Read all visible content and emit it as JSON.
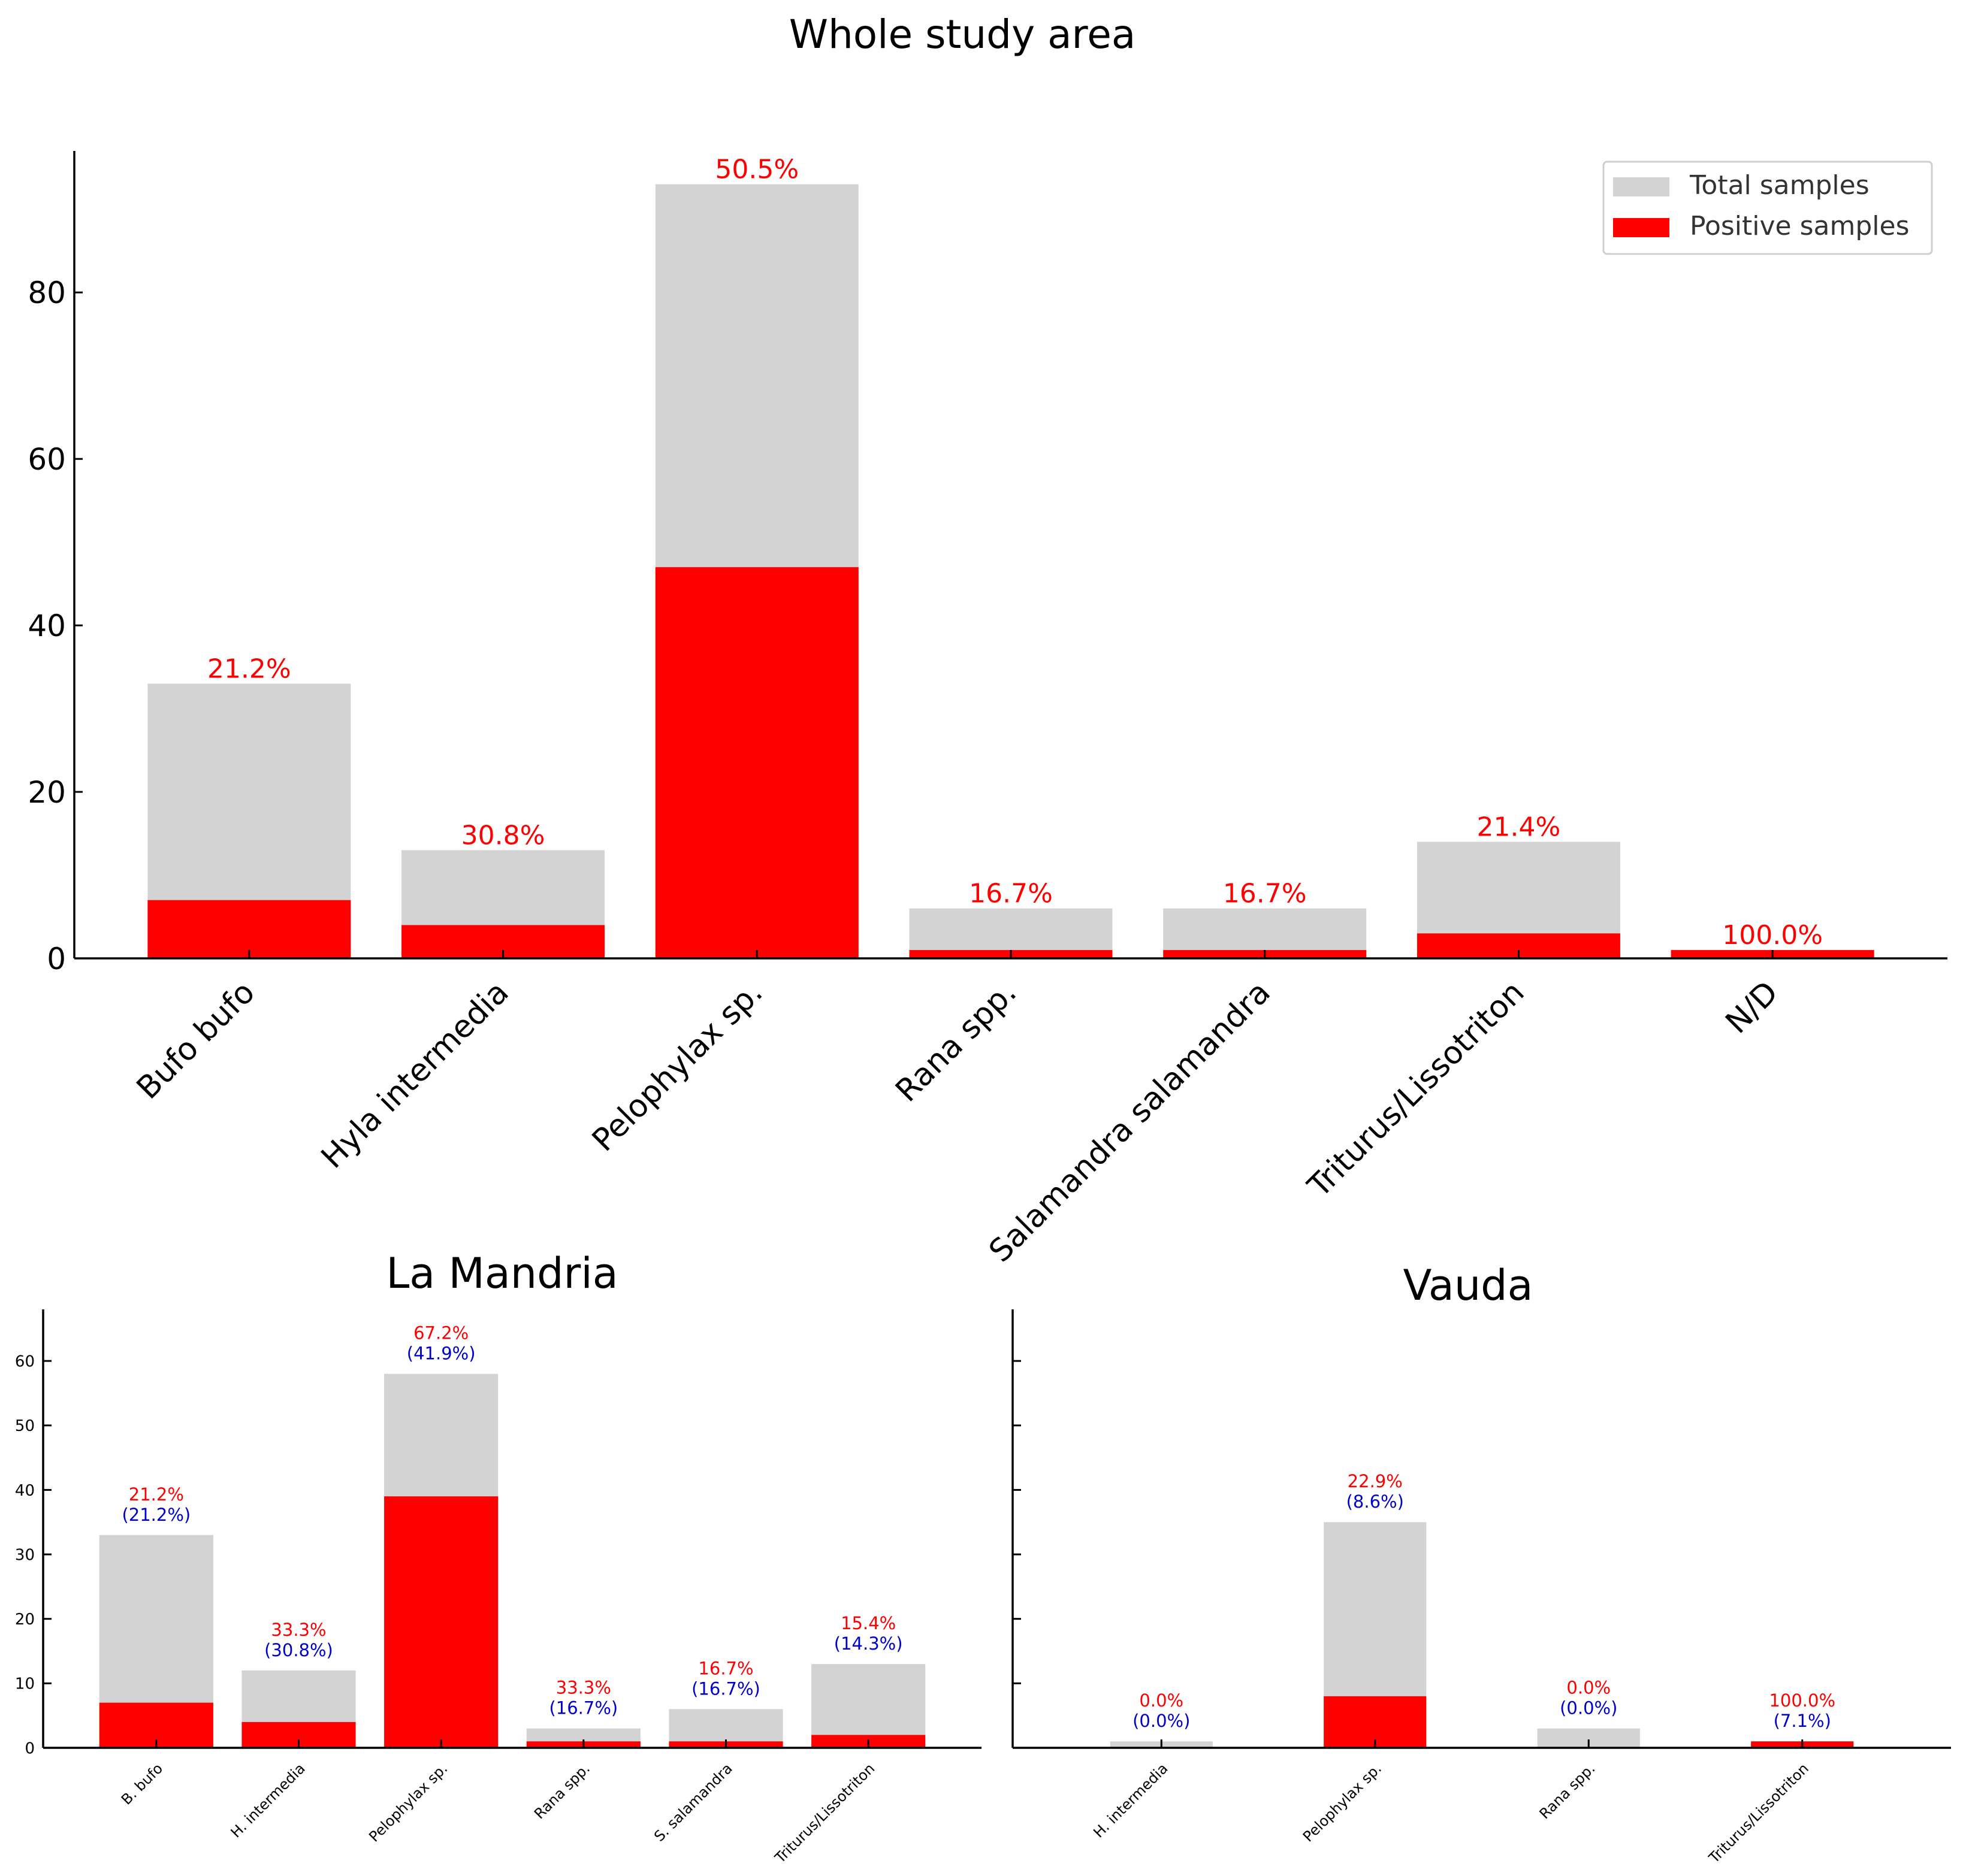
{
  "colors": {
    "total": "#d3d3d3",
    "positive": "#ff0000",
    "pct_primary": "#ff0000",
    "pct_secondary": "#0000cc",
    "axis": "#000000"
  },
  "chart_data": [
    {
      "id": "whole",
      "type": "bar",
      "title": "Whole  study area",
      "xlabel": "",
      "ylabel": "",
      "ylim": [
        0,
        97
      ],
      "yticks": [
        0,
        20,
        40,
        60,
        80
      ],
      "grid": false,
      "legend": {
        "placement": "top-right",
        "entries": [
          {
            "name": "Total samples",
            "color": "#d3d3d3"
          },
          {
            "name": "Positive samples",
            "color": "#ff0000"
          }
        ]
      },
      "categories": [
        "Bufo bufo",
        "Hyla intermedia",
        "Pelophylax sp.",
        "Rana spp.",
        "Salamandra salamandra",
        "Triturus/Lissotriton",
        "N/D"
      ],
      "series": [
        {
          "name": "Total samples",
          "values": [
            33,
            13,
            93,
            6,
            6,
            14,
            1
          ]
        },
        {
          "name": "Positive samples",
          "values": [
            7,
            4,
            47,
            1,
            1,
            3,
            1
          ]
        }
      ],
      "labels_primary": [
        "21.2%",
        "30.8%",
        "50.5%",
        "16.7%",
        "16.7%",
        "21.4%",
        "100.0%"
      ],
      "labels_secondary": []
    },
    {
      "id": "mandria",
      "type": "bar",
      "title": "La Mandria",
      "xlabel": "",
      "ylabel": "",
      "ylim": [
        0,
        68
      ],
      "yticks": [
        0,
        10,
        20,
        30,
        40,
        50,
        60
      ],
      "grid": false,
      "categories": [
        "B. bufo",
        "H. intermedia",
        "Pelophylax sp.",
        "Rana spp.",
        "S. salamandra",
        "Triturus/Lissotriton"
      ],
      "series": [
        {
          "name": "Total samples",
          "values": [
            33,
            12,
            58,
            3,
            6,
            13
          ]
        },
        {
          "name": "Positive samples",
          "values": [
            7,
            4,
            39,
            1,
            1,
            2
          ]
        }
      ],
      "labels_primary": [
        "21.2%",
        "33.3%",
        "67.2%",
        "33.3%",
        "16.7%",
        "15.4%"
      ],
      "labels_secondary": [
        "(21.2%)",
        "(30.8%)",
        "(41.9%)",
        "(16.7%)",
        "(16.7%)",
        "(14.3%)"
      ]
    },
    {
      "id": "vauda",
      "type": "bar",
      "title": "Vauda",
      "xlabel": "",
      "ylabel": "",
      "ylim": [
        0,
        68
      ],
      "yticks": [
        0,
        10,
        20,
        30,
        40,
        50,
        60
      ],
      "grid": false,
      "categories": [
        "H. intermedia",
        "Pelophylax sp.",
        "Rana spp.",
        "Triturus/Lissotriton"
      ],
      "series": [
        {
          "name": "Total samples",
          "values": [
            1,
            35,
            3,
            1
          ]
        },
        {
          "name": "Positive samples",
          "values": [
            0,
            8,
            0,
            1
          ]
        }
      ],
      "labels_primary": [
        "0.0%",
        "22.9%",
        "0.0%",
        "100.0%"
      ],
      "labels_secondary": [
        "(0.0%)",
        "(8.6%)",
        "(0.0%)",
        "(7.1%)"
      ]
    }
  ]
}
